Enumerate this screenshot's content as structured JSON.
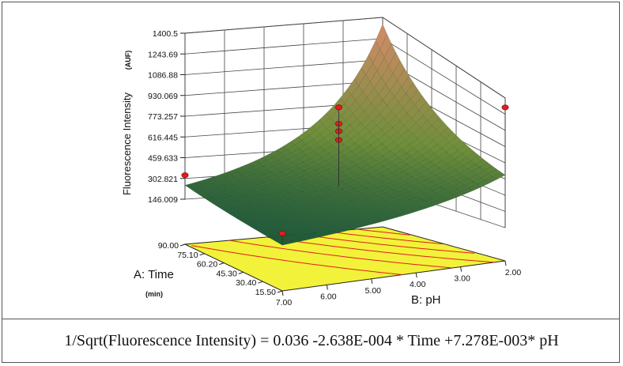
{
  "chart_data": {
    "type": "surface3d",
    "z_axis": {
      "label": "Fluorescence Intensity",
      "unit": "(AUF)",
      "ticks": [
        "1400.5",
        "1243.69",
        "1086.88",
        "930.069",
        "773.257",
        "616.445",
        "459.633",
        "302.821",
        "146.009"
      ],
      "range": [
        146.009,
        1400.5
      ]
    },
    "a_axis": {
      "label": "A: Time",
      "unit": "(min)",
      "ticks": [
        "90.00",
        "75.10",
        "60.20",
        "45.30",
        "30.40",
        "15.50"
      ],
      "range": [
        15.5,
        90.0
      ]
    },
    "b_axis": {
      "label": "B: pH",
      "ticks": [
        "7.00",
        "6.00",
        "5.00",
        "4.00",
        "3.00",
        "2.00"
      ],
      "range": [
        2.0,
        7.0
      ]
    },
    "model": {
      "transform": "1/Sqrt",
      "intercept": 0.036,
      "coef_time": -0.0002638,
      "coef_ph": 0.007278
    },
    "design_points": [
      {
        "time": 90.0,
        "ph": 7.0,
        "value": 330
      },
      {
        "time": 52.75,
        "ph": 4.5,
        "value": 700
      },
      {
        "time": 52.75,
        "ph": 4.5,
        "value": 770
      },
      {
        "time": 52.75,
        "ph": 4.5,
        "value": 830
      },
      {
        "time": 52.75,
        "ph": 4.5,
        "value": 960
      },
      {
        "time": 15.5,
        "ph": 7.0,
        "value": 238
      },
      {
        "time": 15.5,
        "ph": 2.0,
        "value": 1000
      }
    ],
    "colors": {
      "surface_low": "#1d5a3a",
      "surface_mid": "#6f8f3a",
      "surface_high": "#d98a6a",
      "contour_fill": "#f2f23a",
      "contour_line": "#e01e1e",
      "point": "#e01e1e",
      "grid": "#444444"
    }
  },
  "equation": "1/Sqrt(Fluorescence Intensity) = 0.036 -2.638E-004  * Time +7.278E-003* pH"
}
